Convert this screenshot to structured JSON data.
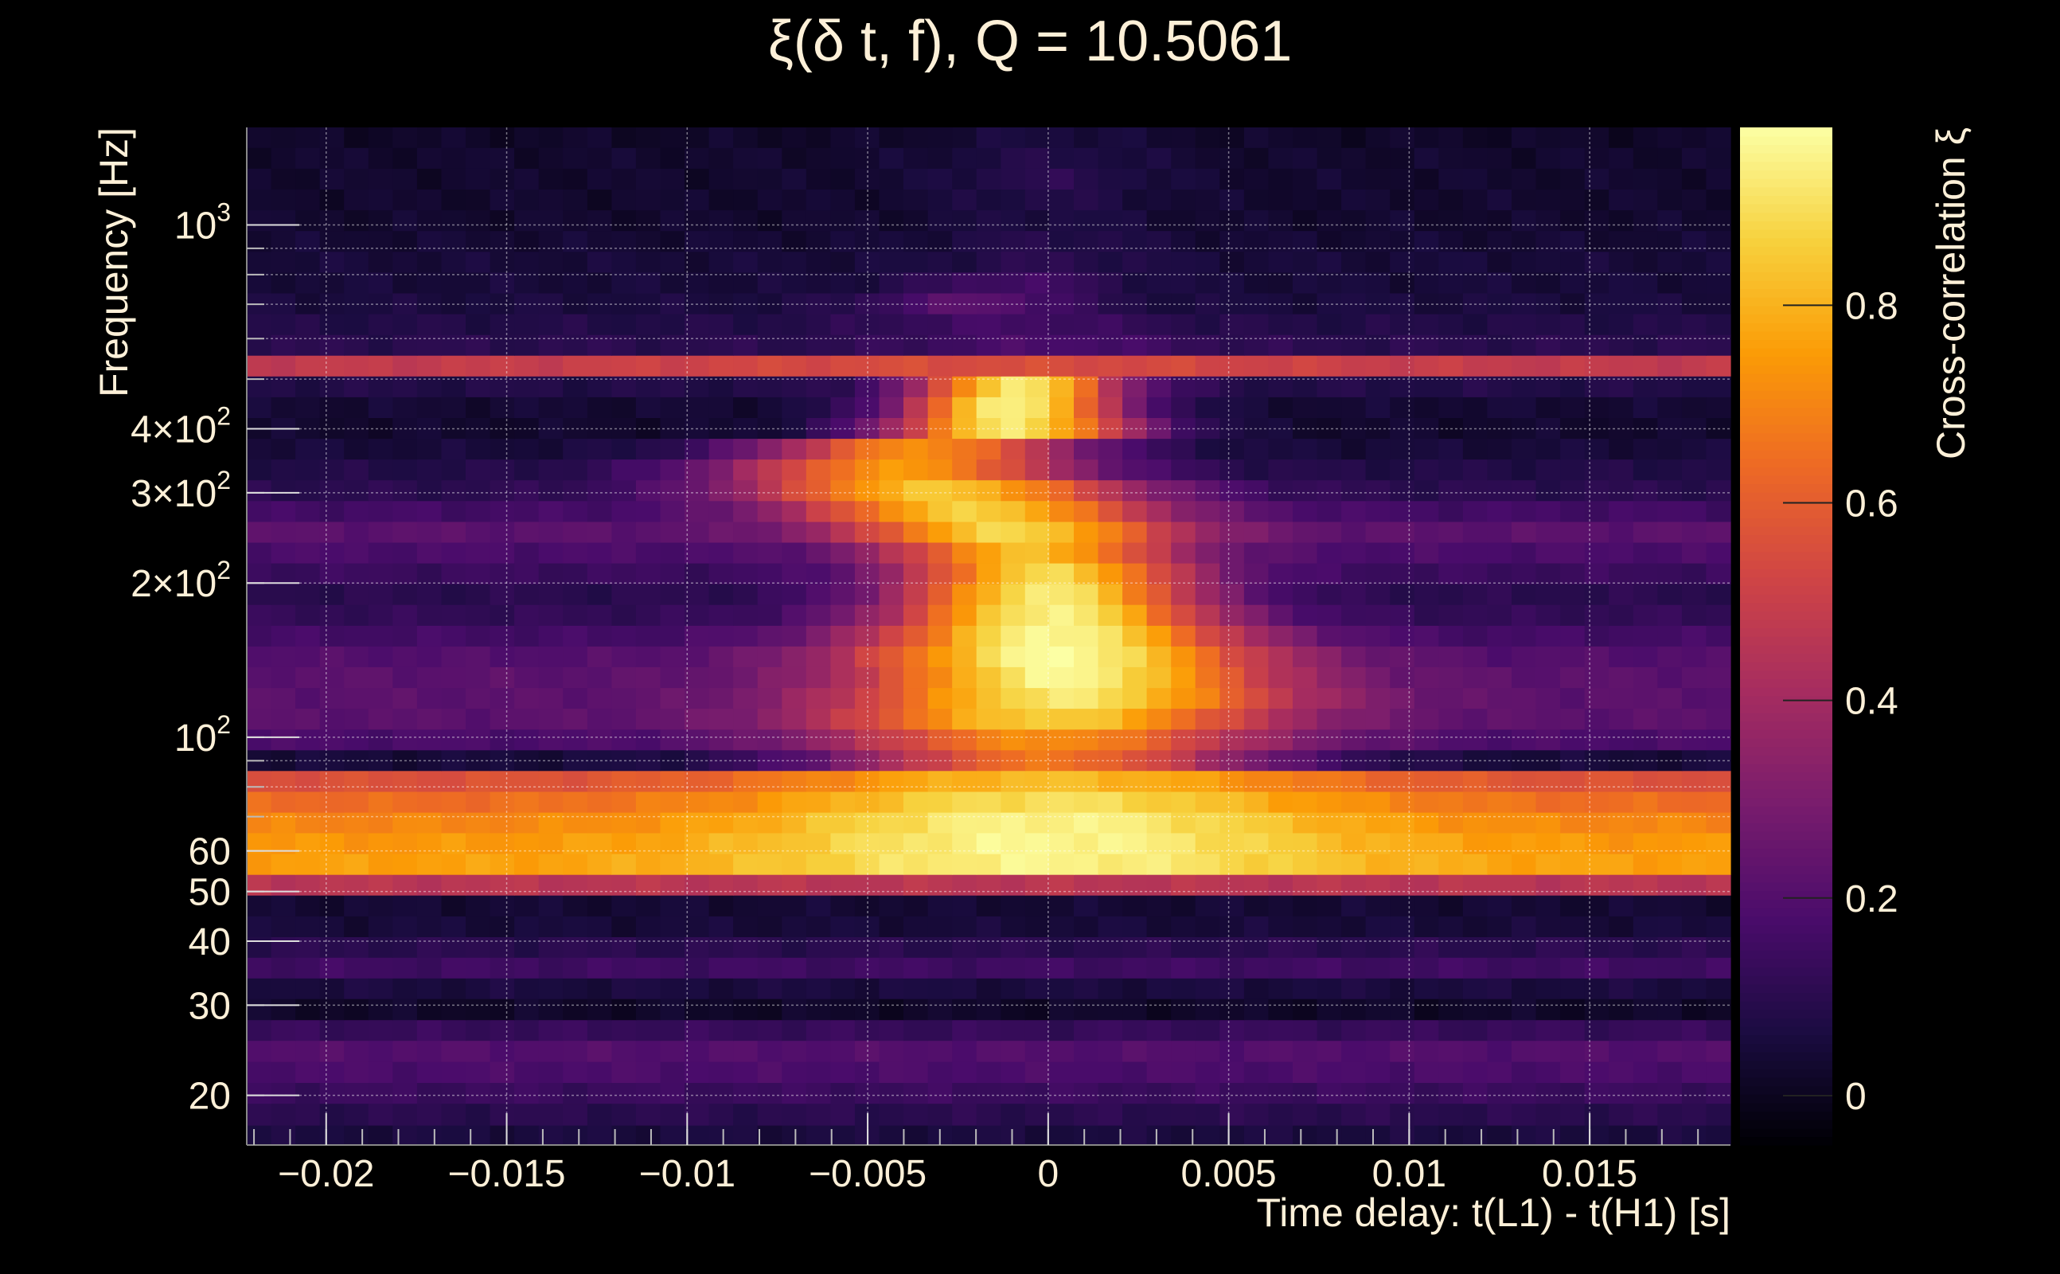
{
  "chart_data": {
    "type": "heatmap",
    "title": "ξ(δ t, f), Q = 10.5061",
    "xlabel": "Time delay: t(L1) - t(H1) [s]",
    "ylabel": "Frequency [Hz]",
    "colorbar_label": "Cross-correlation ξ",
    "x_range": [
      -0.0222,
      0.0189
    ],
    "y_range": [
      16,
      1550
    ],
    "y_scale": "log",
    "z_range": [
      -0.05,
      0.98
    ],
    "grid": true,
    "x_ticks": [
      {
        "value": -0.02,
        "label": "−0.02"
      },
      {
        "value": -0.015,
        "label": "−0.015"
      },
      {
        "value": -0.01,
        "label": "−0.01"
      },
      {
        "value": -0.005,
        "label": "−0.005"
      },
      {
        "value": 0,
        "label": "0"
      },
      {
        "value": 0.005,
        "label": "0.005"
      },
      {
        "value": 0.01,
        "label": "0.01"
      },
      {
        "value": 0.015,
        "label": "0.015"
      }
    ],
    "y_ticks": [
      {
        "value": 20,
        "label": "20"
      },
      {
        "value": 30,
        "label": "30"
      },
      {
        "value": 40,
        "label": "40"
      },
      {
        "value": 50,
        "label": "50"
      },
      {
        "value": 60,
        "label": "60"
      },
      {
        "value": 100,
        "label": "10",
        "sup": "2"
      },
      {
        "value": 200,
        "label": "2×10",
        "sup": "2"
      },
      {
        "value": 300,
        "label": "3×10",
        "sup": "2"
      },
      {
        "value": 400,
        "label": "4×10",
        "sup": "2"
      },
      {
        "value": 1000,
        "label": "10",
        "sup": "3"
      }
    ],
    "colorbar_ticks": [
      {
        "value": 0,
        "label": "0"
      },
      {
        "value": 0.2,
        "label": "0.2"
      },
      {
        "value": 0.4,
        "label": "0.4"
      },
      {
        "value": 0.6,
        "label": "0.6"
      },
      {
        "value": 0.8,
        "label": "0.8"
      }
    ],
    "colormap": [
      "#000004",
      "#1b0c41",
      "#4a0c6b",
      "#781c6d",
      "#a52c60",
      "#cf4446",
      "#ed6925",
      "#fb9b06",
      "#f7d13d",
      "#fcffa4"
    ],
    "bands": [
      {
        "f_lo": 16.0,
        "f_hi": 17.5,
        "peak": 0.06,
        "base": 0.06,
        "width": 1,
        "x0": 0
      },
      {
        "f_lo": 17.5,
        "f_hi": 19.3,
        "peak": 0.1,
        "base": 0.1,
        "width": 1,
        "x0": 0
      },
      {
        "f_lo": 19.3,
        "f_hi": 21.2,
        "peak": 0.14,
        "base": 0.14,
        "width": 1,
        "x0": 0
      },
      {
        "f_lo": 21.2,
        "f_hi": 23.3,
        "peak": 0.18,
        "base": 0.18,
        "width": 1,
        "x0": 0
      },
      {
        "f_lo": 23.3,
        "f_hi": 25.6,
        "peak": 0.2,
        "base": 0.2,
        "width": 1,
        "x0": 0
      },
      {
        "f_lo": 25.6,
        "f_hi": 28.1,
        "peak": 0.13,
        "base": 0.13,
        "width": 1,
        "x0": 0
      },
      {
        "f_lo": 28.1,
        "f_hi": 30.9,
        "peak": 0.02,
        "base": 0.02,
        "width": 1,
        "x0": 0
      },
      {
        "f_lo": 30.9,
        "f_hi": 33.9,
        "peak": 0.06,
        "base": 0.06,
        "width": 1,
        "x0": 0
      },
      {
        "f_lo": 33.9,
        "f_hi": 37.2,
        "peak": 0.15,
        "base": 0.15,
        "width": 1,
        "x0": 0
      },
      {
        "f_lo": 37.2,
        "f_hi": 40.8,
        "peak": 0.1,
        "base": 0.1,
        "width": 1,
        "x0": 0
      },
      {
        "f_lo": 40.8,
        "f_hi": 44.8,
        "peak": 0.05,
        "base": 0.05,
        "width": 1,
        "x0": 0
      },
      {
        "f_lo": 44.8,
        "f_hi": 49.2,
        "peak": 0.04,
        "base": 0.04,
        "width": 1,
        "x0": 0
      },
      {
        "f_lo": 49.2,
        "f_hi": 54.0,
        "peak": 0.46,
        "base": 0.46,
        "width": 1,
        "x0": 0
      },
      {
        "f_lo": 54.0,
        "f_hi": 59.3,
        "peak": 0.95,
        "base": 0.76,
        "width": 0.008,
        "x0": 0
      },
      {
        "f_lo": 59.3,
        "f_hi": 65.1,
        "peak": 0.96,
        "base": 0.74,
        "width": 0.008,
        "x0": 0
      },
      {
        "f_lo": 65.1,
        "f_hi": 71.4,
        "peak": 0.95,
        "base": 0.7,
        "width": 0.008,
        "x0": 0
      },
      {
        "f_lo": 71.4,
        "f_hi": 78.4,
        "peak": 0.9,
        "base": 0.64,
        "width": 0.008,
        "x0": 0
      },
      {
        "f_lo": 78.4,
        "f_hi": 86.1,
        "peak": 0.82,
        "base": 0.56,
        "width": 0.008,
        "x0": 0
      },
      {
        "f_lo": 86.1,
        "f_hi": 94.5,
        "peak": 0.66,
        "base": 0.05,
        "width": 0.006,
        "x0": 0
      },
      {
        "f_lo": 94.5,
        "f_hi": 103.7,
        "peak": 0.72,
        "base": 0.18,
        "width": 0.006,
        "x0": 0
      },
      {
        "f_lo": 103.7,
        "f_hi": 113.9,
        "peak": 0.86,
        "base": 0.22,
        "width": 0.006,
        "x0": 0
      },
      {
        "f_lo": 113.9,
        "f_hi": 125.0,
        "peak": 0.92,
        "base": 0.22,
        "width": 0.006,
        "x0": 0.0005
      },
      {
        "f_lo": 125.0,
        "f_hi": 137.3,
        "peak": 0.96,
        "base": 0.22,
        "width": 0.0055,
        "x0": 0.0005
      },
      {
        "f_lo": 137.3,
        "f_hi": 150.7,
        "peak": 0.98,
        "base": 0.2,
        "width": 0.0055,
        "x0": 0.0003
      },
      {
        "f_lo": 150.7,
        "f_hi": 165.4,
        "peak": 0.97,
        "base": 0.16,
        "width": 0.005,
        "x0": 0.0002
      },
      {
        "f_lo": 165.4,
        "f_hi": 181.6,
        "peak": 0.95,
        "base": 0.12,
        "width": 0.0045,
        "x0": 0.0001
      },
      {
        "f_lo": 181.6,
        "f_hi": 199.4,
        "peak": 0.93,
        "base": 0.1,
        "width": 0.0042,
        "x0": 0
      },
      {
        "f_lo": 199.4,
        "f_hi": 218.9,
        "peak": 0.88,
        "base": 0.14,
        "width": 0.004,
        "x0": 0
      },
      {
        "f_lo": 218.9,
        "f_hi": 240.3,
        "peak": 0.82,
        "base": 0.18,
        "width": 0.004,
        "x0": -0.0005
      },
      {
        "f_lo": 240.3,
        "f_hi": 263.8,
        "peak": 0.88,
        "base": 0.22,
        "width": 0.0045,
        "x0": -0.001
      },
      {
        "f_lo": 263.8,
        "f_hi": 289.6,
        "peak": 0.86,
        "base": 0.16,
        "width": 0.005,
        "x0": -0.002
      },
      {
        "f_lo": 289.6,
        "f_hi": 318.0,
        "peak": 0.84,
        "base": 0.1,
        "width": 0.0055,
        "x0": -0.003
      },
      {
        "f_lo": 318.0,
        "f_hi": 349.1,
        "peak": 0.74,
        "base": 0.08,
        "width": 0.005,
        "x0": -0.004
      },
      {
        "f_lo": 349.1,
        "f_hi": 383.2,
        "peak": 0.72,
        "base": 0.05,
        "width": 0.0045,
        "x0": -0.0035
      },
      {
        "f_lo": 383.2,
        "f_hi": 420.7,
        "peak": 0.92,
        "base": 0.03,
        "width": 0.0035,
        "x0": -0.001
      },
      {
        "f_lo": 420.7,
        "f_hi": 461.9,
        "peak": 0.96,
        "base": 0.04,
        "width": 0.003,
        "x0": -0.001
      },
      {
        "f_lo": 461.9,
        "f_hi": 507.1,
        "peak": 0.93,
        "base": 0.08,
        "width": 0.0028,
        "x0": -0.0008
      },
      {
        "f_lo": 507.1,
        "f_hi": 556.7,
        "peak": 0.55,
        "base": 0.48,
        "width": 0.01,
        "x0": -0.002
      },
      {
        "f_lo": 556.7,
        "f_hi": 611.2,
        "peak": 0.18,
        "base": 0.1,
        "width": 0.004,
        "x0": 0
      },
      {
        "f_lo": 611.2,
        "f_hi": 671.0,
        "peak": 0.16,
        "base": 0.08,
        "width": 0.004,
        "x0": -0.001
      },
      {
        "f_lo": 671.0,
        "f_hi": 736.7,
        "peak": 0.22,
        "base": 0.06,
        "width": 0.003,
        "x0": -0.002
      },
      {
        "f_lo": 736.7,
        "f_hi": 808.8,
        "peak": 0.16,
        "base": 0.05,
        "width": 0.003,
        "x0": -0.001
      },
      {
        "f_lo": 808.8,
        "f_hi": 888.0,
        "peak": 0.1,
        "base": 0.05,
        "width": 0.003,
        "x0": 0
      },
      {
        "f_lo": 888.0,
        "f_hi": 974.9,
        "peak": 0.09,
        "base": 0.04,
        "width": 0.003,
        "x0": 0
      },
      {
        "f_lo": 974.9,
        "f_hi": 1070.3,
        "peak": 0.07,
        "base": 0.03,
        "width": 0.003,
        "x0": 0
      },
      {
        "f_lo": 1070.3,
        "f_hi": 1175.1,
        "peak": 0.08,
        "base": 0.03,
        "width": 0.003,
        "x0": 0
      },
      {
        "f_lo": 1175.1,
        "f_hi": 1290.1,
        "peak": 0.1,
        "base": 0.03,
        "width": 0.003,
        "x0": 0
      },
      {
        "f_lo": 1290.1,
        "f_hi": 1416.4,
        "peak": 0.08,
        "base": 0.03,
        "width": 0.003,
        "x0": 0
      },
      {
        "f_lo": 1416.4,
        "f_hi": 1550.0,
        "peak": 0.06,
        "base": 0.02,
        "width": 0.003,
        "x0": 0
      }
    ]
  }
}
